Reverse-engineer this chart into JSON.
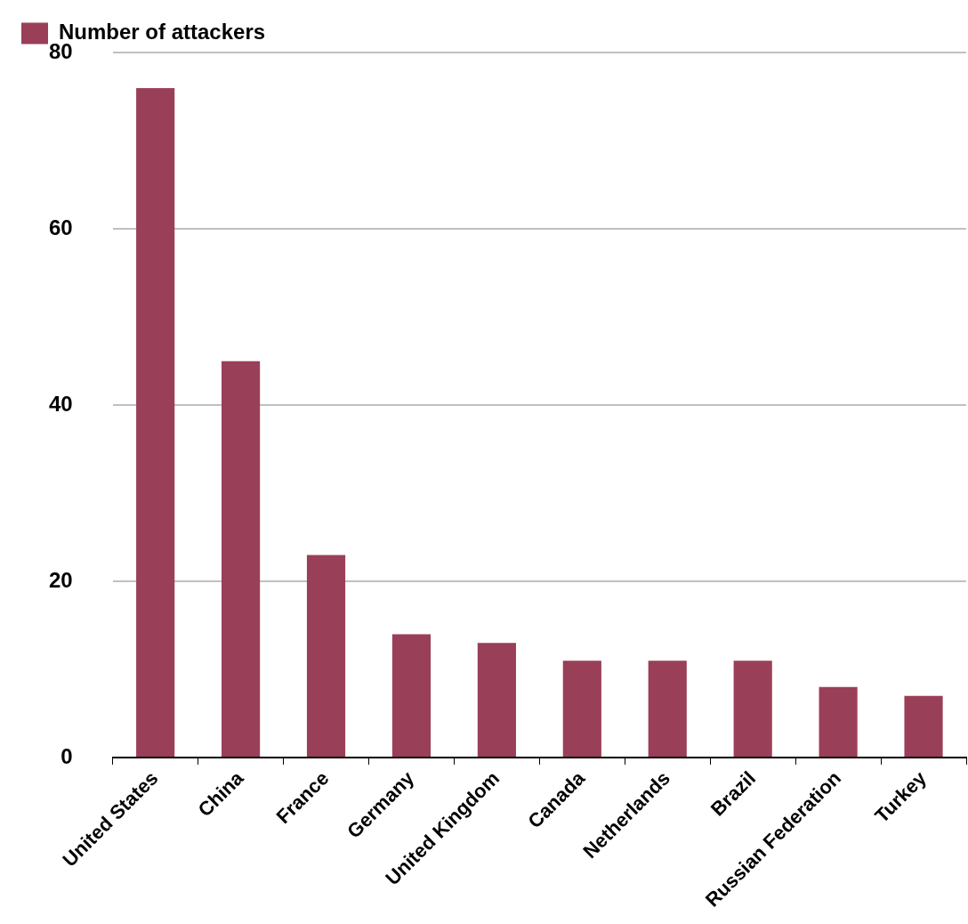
{
  "chart_data": {
    "type": "bar",
    "categories": [
      "United States",
      "China",
      "France",
      "Germany",
      "United Kingdom",
      "Canada",
      "Netherlands",
      "Brazil",
      "Russian Federation",
      "Turkey"
    ],
    "series": [
      {
        "name": "Number of attackers",
        "color": "#9a3f58",
        "values": [
          76,
          45,
          23,
          14,
          13,
          11,
          11,
          11,
          8,
          7
        ]
      }
    ],
    "ylim": [
      0,
      80
    ],
    "yticks": [
      0,
      20,
      40,
      60,
      80
    ],
    "grid": "y",
    "legend": "top left"
  }
}
